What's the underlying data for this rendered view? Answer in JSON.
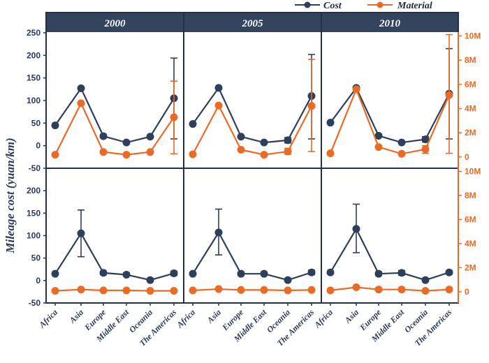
{
  "chart_data": {
    "type": "line",
    "ylabel": "Mileage cost (yuan/km)",
    "categories": [
      "Africa",
      "Asia",
      "Europe",
      "Middle East",
      "Oceania",
      "The Americas"
    ],
    "years": [
      "2000",
      "2005",
      "2010"
    ],
    "legend": {
      "placement": "top-right",
      "items": [
        {
          "name": "Cost",
          "color": "#2e3f5c"
        },
        {
          "name": "Material",
          "color": "#ea6a26"
        }
      ]
    },
    "left_axis": {
      "ylim": [
        -50,
        250
      ],
      "ticks": [
        "-50",
        "0",
        "50",
        "100",
        "150",
        "200",
        "250"
      ],
      "bottom_row_ticks": [
        "-50",
        "0",
        "50",
        "100",
        "150",
        "200"
      ]
    },
    "right_axis": {
      "ticks": [
        "0",
        "2M",
        "4M",
        "6M",
        "8M",
        "10M"
      ],
      "tick_values": [
        0,
        2,
        4,
        6,
        8,
        10
      ]
    },
    "top_row": {
      "2000": {
        "Cost": [
          45,
          127,
          21,
          7,
          20,
          105
        ],
        "Cost_error_range": [
          null,
          null,
          [
            17,
            25
          ],
          null,
          null,
          [
            15,
            194
          ]
        ],
        "Material": [
          -20,
          94,
          -14,
          -20,
          -14,
          63
        ],
        "Material_error_range": [
          null,
          null,
          null,
          null,
          null,
          [
            -18,
            143
          ]
        ]
      },
      "2005": {
        "Cost": [
          48,
          128,
          20,
          7,
          12,
          110
        ],
        "Cost_error_range": [
          null,
          null,
          null,
          null,
          [
            6,
            18
          ],
          [
            15,
            202
          ]
        ],
        "Material": [
          -19,
          89,
          -9,
          -20,
          -13,
          88
        ],
        "Material_error_range": [
          null,
          null,
          null,
          null,
          [
            -19,
            -6
          ],
          [
            -13,
            191
          ]
        ]
      },
      "2010": {
        "Cost": [
          51,
          128,
          22,
          7,
          14,
          115
        ],
        "Cost_error_range": [
          null,
          null,
          null,
          null,
          [
            8,
            20
          ],
          [
            15,
            215
          ]
        ],
        "Material": [
          -17,
          125,
          -3,
          -18,
          -8,
          112
        ],
        "Material_error_range": [
          null,
          null,
          null,
          null,
          [
            -17,
            0
          ],
          [
            -17,
            246
          ]
        ]
      }
    },
    "bottom_row": {
      "2000": {
        "Cost": [
          15,
          105,
          17,
          13,
          1,
          16
        ],
        "Cost_error_range": [
          null,
          [
            53,
            157
          ],
          [
            13,
            21
          ],
          [
            11,
            17
          ],
          null,
          [
            11,
            21
          ]
        ],
        "Material": [
          -23,
          -20,
          -22,
          -22,
          -23,
          -23
        ]
      },
      "2005": {
        "Cost": [
          15,
          107,
          15,
          15,
          1,
          18
        ],
        "Cost_error_range": [
          null,
          [
            57,
            159
          ],
          [
            11,
            19
          ],
          [
            11,
            19
          ],
          null,
          [
            13,
            23
          ]
        ],
        "Material": [
          -22,
          -19,
          -21,
          -21,
          -22,
          -21
        ]
      },
      "2010": {
        "Cost": [
          18,
          115,
          15,
          17,
          1,
          18
        ],
        "Cost_error_range": [
          null,
          [
            62,
            170
          ],
          [
            11,
            19
          ],
          [
            12,
            22
          ],
          null,
          [
            14,
            22
          ]
        ],
        "Material": [
          -22,
          -15,
          -20,
          -20,
          -23,
          -20
        ]
      }
    }
  }
}
